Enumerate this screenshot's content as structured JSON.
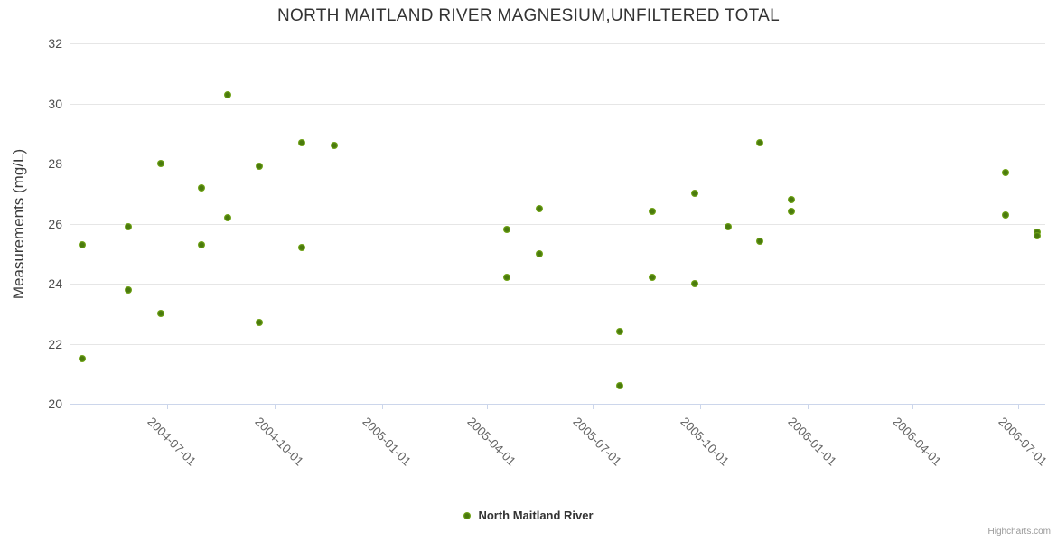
{
  "title": "NORTH MAITLAND RIVER MAGNESIUM,UNFILTERED TOTAL",
  "credits": "Highcharts.com",
  "legend": {
    "series_label": "North Maitland River"
  },
  "colors": {
    "point_outer": "#85ba1c",
    "point_inner": "#4a7a0d",
    "grid": "#e6e6e6",
    "axis_line": "#ccd6eb",
    "title_text": "#333333",
    "x_tick_label": "#666666",
    "y_tick_label": "#4d4d4d",
    "credits_text": "#999999"
  },
  "chart_data": {
    "type": "scatter",
    "title": "NORTH MAITLAND RIVER MAGNESIUM,UNFILTERED TOTAL",
    "xlabel": "",
    "ylabel": "Measurements (mg/L)",
    "ylim": [
      20,
      32
    ],
    "y_ticks": [
      20,
      22,
      24,
      26,
      28,
      30,
      32
    ],
    "x_tick_labels": [
      "2004-07-01",
      "2004-10-01",
      "2005-01-01",
      "2005-04-01",
      "2005-07-01",
      "2005-10-01",
      "2006-01-01",
      "2006-04-01",
      "2006-07-01"
    ],
    "x_range": [
      "2004-04-08",
      "2006-07-24"
    ],
    "grid": true,
    "legend_position": "bottom-center",
    "series": [
      {
        "name": "North Maitland River",
        "color": "#85ba1c",
        "points": [
          [
            "2004-04-19",
            25.3
          ],
          [
            "2004-04-19",
            21.5
          ],
          [
            "2004-05-28",
            25.9
          ],
          [
            "2004-05-28",
            23.8
          ],
          [
            "2004-06-25",
            28.0
          ],
          [
            "2004-06-25",
            23.0
          ],
          [
            "2004-07-30",
            27.2
          ],
          [
            "2004-07-30",
            25.3
          ],
          [
            "2004-08-22",
            30.3
          ],
          [
            "2004-08-22",
            26.2
          ],
          [
            "2004-09-18",
            27.9
          ],
          [
            "2004-09-18",
            22.7
          ],
          [
            "2004-10-24",
            28.7
          ],
          [
            "2004-10-24",
            25.2
          ],
          [
            "2004-11-21",
            28.6
          ],
          [
            "2005-04-18",
            25.8
          ],
          [
            "2005-04-18",
            24.2
          ],
          [
            "2005-05-16",
            26.5
          ],
          [
            "2005-05-16",
            25.0
          ],
          [
            "2005-07-24",
            22.4
          ],
          [
            "2005-07-24",
            20.6
          ],
          [
            "2005-08-21",
            26.4
          ],
          [
            "2005-08-21",
            24.2
          ],
          [
            "2005-09-26",
            27.0
          ],
          [
            "2005-09-26",
            24.0
          ],
          [
            "2005-10-25",
            25.9
          ],
          [
            "2005-11-21",
            28.7
          ],
          [
            "2005-11-21",
            25.4
          ],
          [
            "2005-12-18",
            26.8
          ],
          [
            "2005-12-18",
            26.4
          ],
          [
            "2006-06-20",
            27.7
          ],
          [
            "2006-06-20",
            26.3
          ],
          [
            "2006-07-17",
            25.7
          ],
          [
            "2006-07-17",
            25.6
          ]
        ]
      }
    ]
  }
}
